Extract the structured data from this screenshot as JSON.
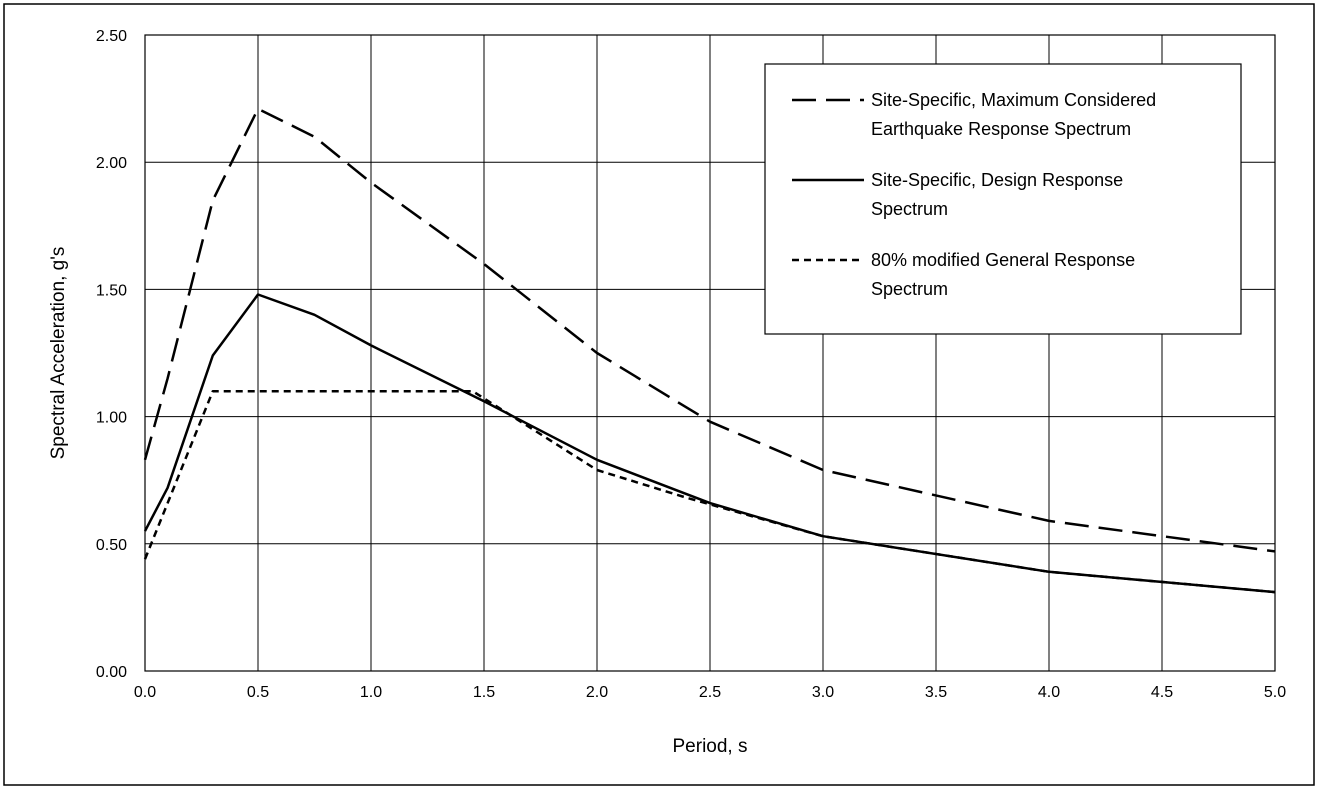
{
  "chart_data": {
    "type": "line",
    "title": "",
    "xlabel": "Period, s",
    "ylabel": "Spectral Acceleration, g's",
    "xlim": [
      0.0,
      5.0
    ],
    "ylim": [
      0.0,
      2.5
    ],
    "x_ticks": [
      "0.0",
      "0.5",
      "1.0",
      "1.5",
      "2.0",
      "2.5",
      "3.0",
      "3.5",
      "4.0",
      "4.5",
      "5.0"
    ],
    "y_ticks": [
      "0.00",
      "0.50",
      "1.00",
      "1.50",
      "2.00",
      "2.50"
    ],
    "grid": true,
    "legend_position": "top-right",
    "series": [
      {
        "name": "Site-Specific, Maximum Considered Earthquake Response Spectrum",
        "legend_lines": [
          "Site-Specific, Maximum Considered",
          "Earthquake Response Spectrum"
        ],
        "style": "long-dash",
        "x": [
          0.0,
          0.1,
          0.3,
          0.5,
          0.75,
          1.0,
          1.5,
          2.0,
          2.5,
          3.0,
          4.0,
          5.0
        ],
        "y": [
          0.83,
          1.15,
          1.85,
          2.21,
          2.1,
          1.92,
          1.6,
          1.25,
          0.98,
          0.79,
          0.59,
          0.47
        ]
      },
      {
        "name": "Site-Specific, Design Response Spectrum",
        "legend_lines": [
          "Site-Specific, Design Response",
          "Spectrum"
        ],
        "style": "solid",
        "x": [
          0.0,
          0.1,
          0.3,
          0.5,
          0.75,
          1.0,
          1.5,
          2.0,
          2.5,
          3.0,
          4.0,
          5.0
        ],
        "y": [
          0.55,
          0.72,
          1.24,
          1.48,
          1.4,
          1.28,
          1.06,
          0.83,
          0.66,
          0.53,
          0.39,
          0.31
        ]
      },
      {
        "name": "80% modified General Response Spectrum",
        "legend_lines": [
          "80% modified General Response",
          "Spectrum"
        ],
        "style": "short-dash",
        "x": [
          0.0,
          0.3,
          1.0,
          1.45,
          2.0,
          2.4,
          3.0,
          4.0,
          5.0
        ],
        "y": [
          0.44,
          1.1,
          1.1,
          1.1,
          0.79,
          0.68,
          0.53,
          0.39,
          0.31
        ]
      }
    ]
  }
}
